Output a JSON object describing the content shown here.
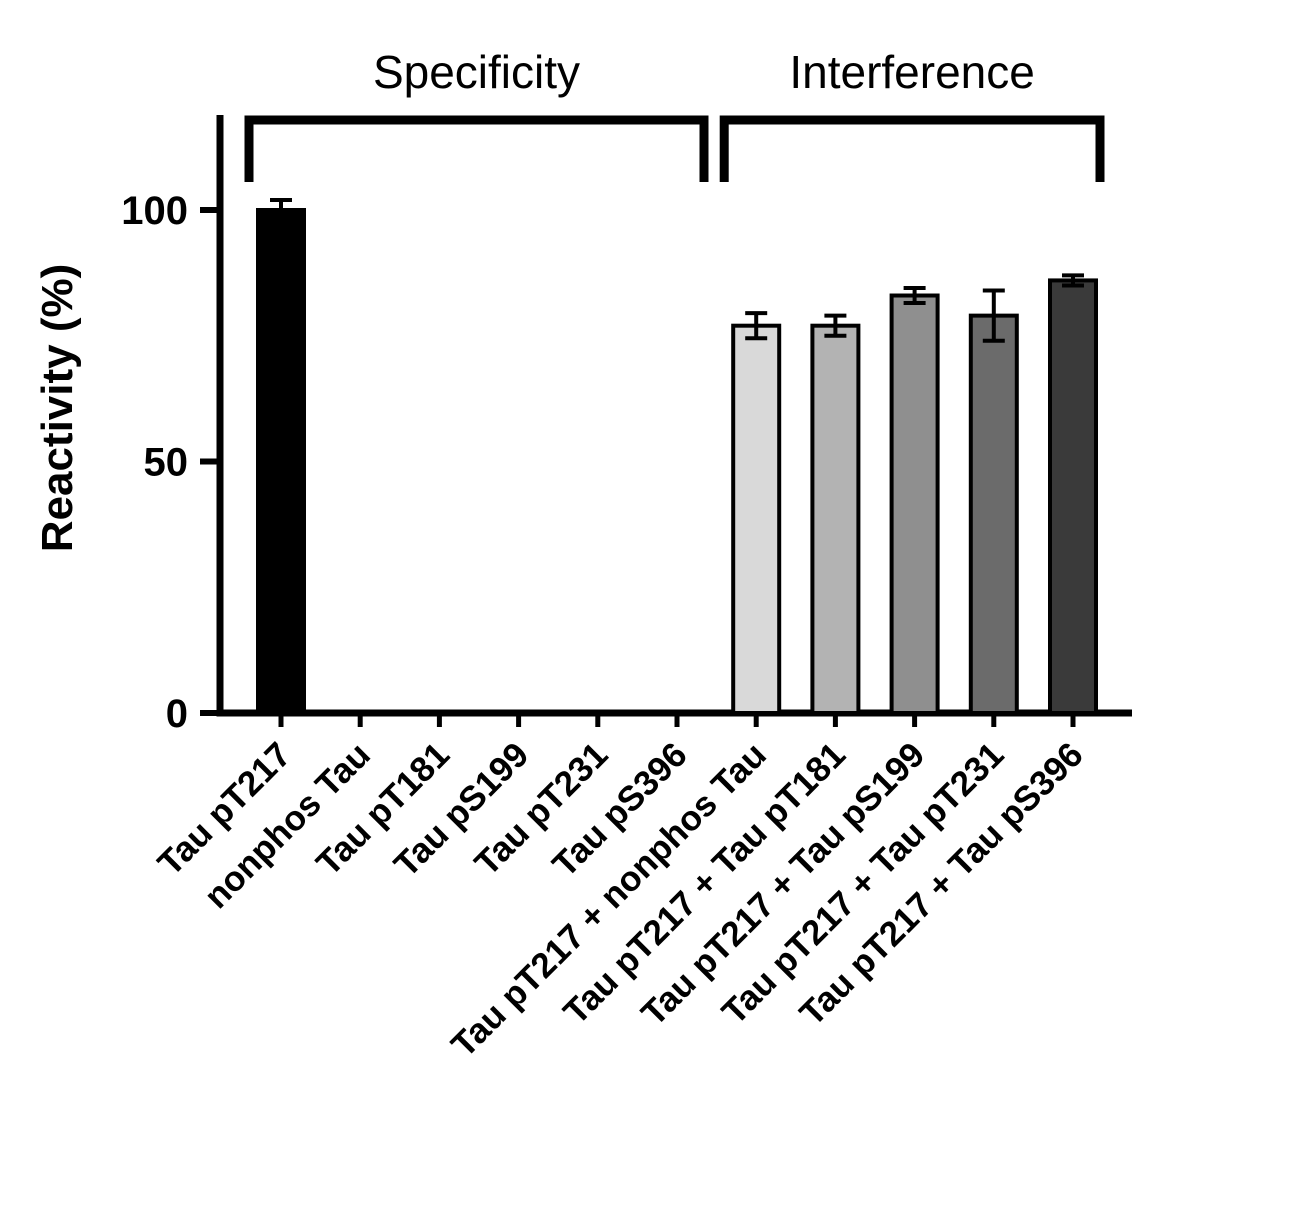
{
  "chart_data": {
    "type": "bar",
    "title": "",
    "xlabel": "",
    "ylabel": "Reactivity (%)",
    "ylim": [
      0,
      119
    ],
    "yticks": [
      0,
      50,
      100
    ],
    "grid": false,
    "legend": "none",
    "categories": [
      "Tau pT217",
      "nonphos Tau",
      "Tau pT181",
      "Tau pS199",
      "Tau pT231",
      "Tau pS396",
      "Tau pT217 + nonphos Tau",
      "Tau pT217 + Tau pT181",
      "Tau pT217 + Tau pS199",
      "Tau pT217 + Tau pT231",
      "Tau pT217 + Tau pS396"
    ],
    "values": [
      100,
      0,
      0,
      0,
      0,
      0,
      77,
      77,
      83,
      79,
      86
    ],
    "errors": [
      2,
      0,
      0,
      0,
      0,
      0,
      2.5,
      2,
      1.5,
      5,
      1
    ],
    "bar_colors": [
      "#000000",
      null,
      null,
      null,
      null,
      null,
      "#d9d9d9",
      "#b3b3b3",
      "#8f8f8f",
      "#6b6b6b",
      "#3a3a3a"
    ],
    "bar_outline_color": "#000000",
    "axis_color": "#000000",
    "groups": [
      {
        "label": "Specificity",
        "start": 0,
        "end": 5
      },
      {
        "label": "Interference",
        "start": 6,
        "end": 10
      }
    ]
  }
}
